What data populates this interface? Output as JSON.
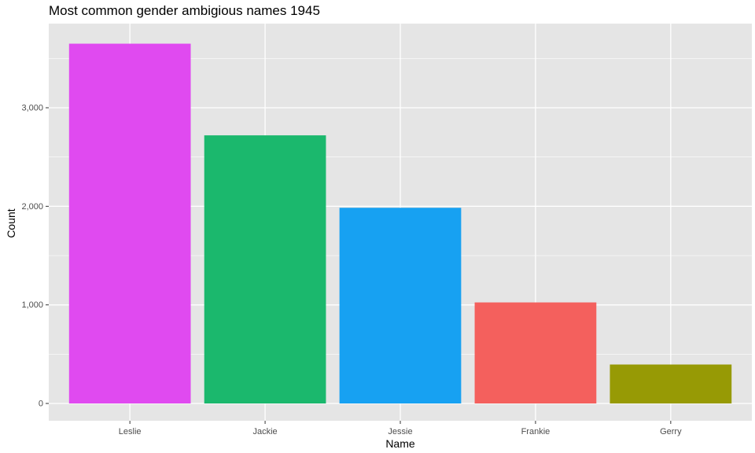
{
  "chart_data": {
    "type": "bar",
    "title": "Most common gender ambigious names 1945",
    "xlabel": "Name",
    "ylabel": "Count",
    "categories": [
      "Leslie",
      "Jackie",
      "Jessie",
      "Frankie",
      "Gerry"
    ],
    "values": [
      3650,
      2720,
      1985,
      1025,
      395
    ],
    "colors": [
      "#E04AF0",
      "#1BB86D",
      "#17A1F2",
      "#F4605D",
      "#979A05"
    ],
    "ylim": [
      0,
      3830
    ],
    "yticks": [
      0,
      1000,
      2000,
      3000
    ],
    "ytick_labels": [
      "0",
      "1,000",
      "2,000",
      "3,000"
    ],
    "panel_background": "#E5E5E5",
    "grid_color": "#FFFFFF",
    "grid": true,
    "legend": "none"
  }
}
